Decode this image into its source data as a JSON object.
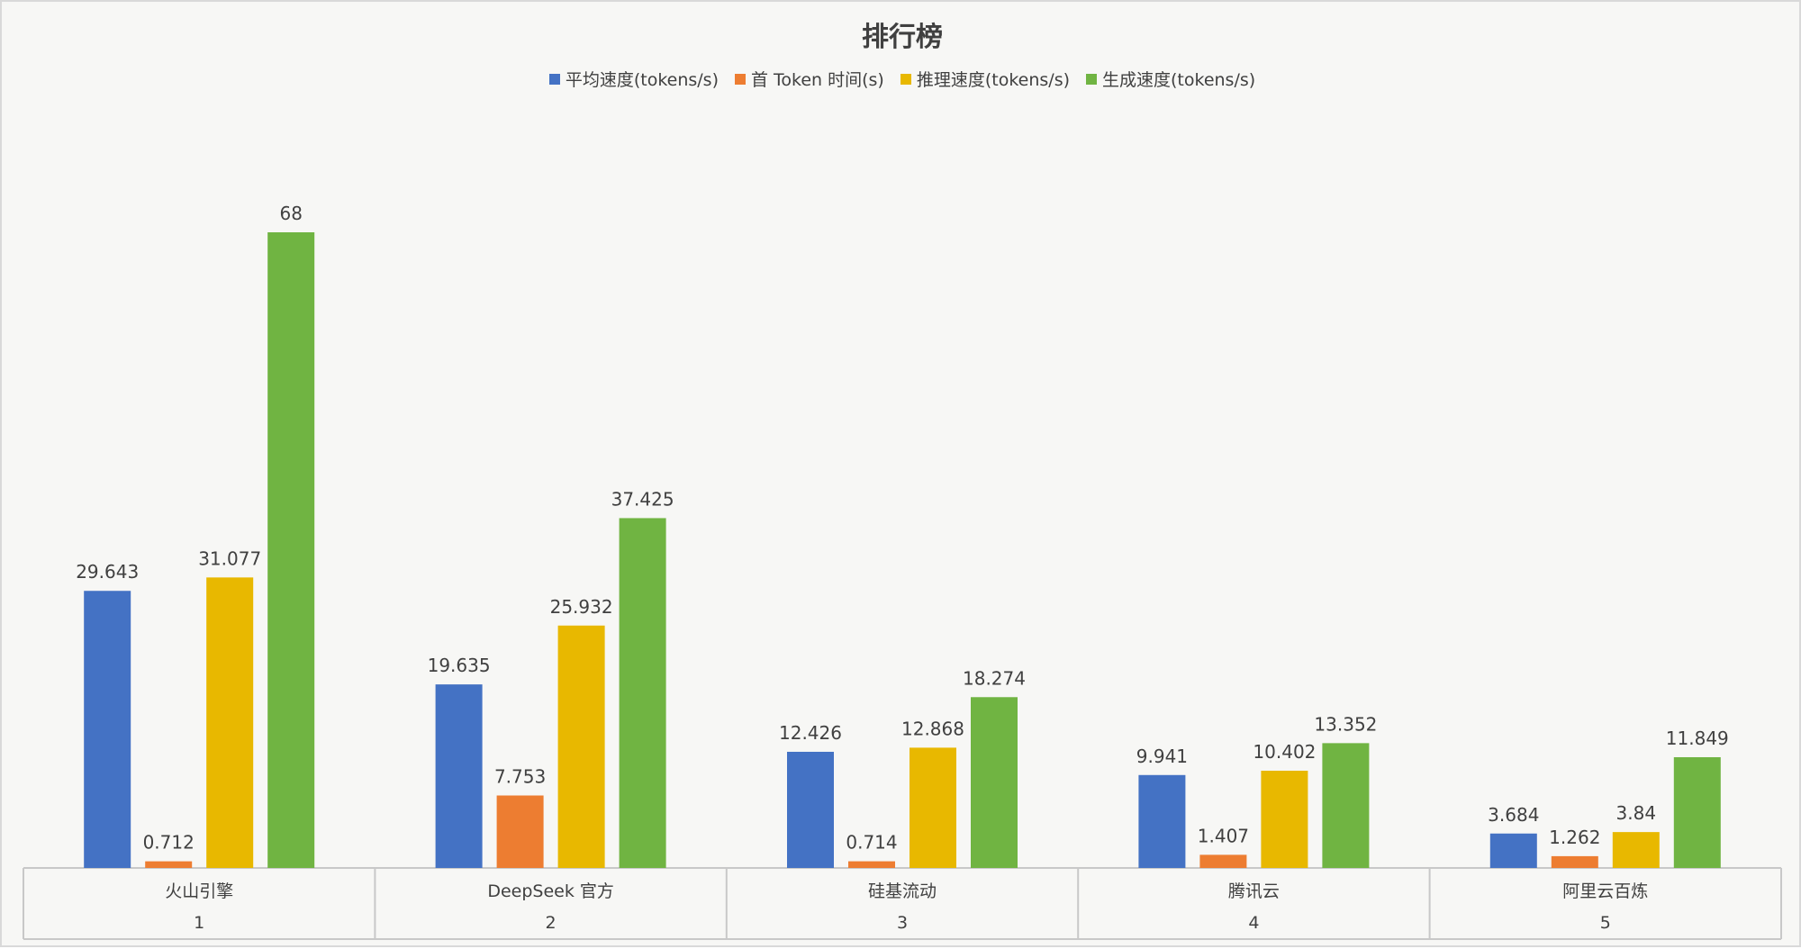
{
  "chart_data": {
    "type": "bar",
    "title": "排行榜",
    "categories": [
      "火山引擎",
      "DeepSeek 官方",
      "硅基流动",
      "腾讯云",
      "阿里云百炼"
    ],
    "ranks": [
      "1",
      "2",
      "3",
      "4",
      "5"
    ],
    "series": [
      {
        "name": "平均速度(tokens/s)",
        "color": "#4472c4",
        "values": [
          29.643,
          19.635,
          12.426,
          9.941,
          3.684
        ]
      },
      {
        "name": "首 Token 时间(s)",
        "color": "#ed7d31",
        "values": [
          0.712,
          7.753,
          0.714,
          1.407,
          1.262
        ]
      },
      {
        "name": "推理速度(tokens/s)",
        "color": "#e8b800",
        "values": [
          31.077,
          25.932,
          12.868,
          10.402,
          3.84
        ]
      },
      {
        "name": "生成速度(tokens/s)",
        "color": "#70b442",
        "values": [
          68,
          37.425,
          18.274,
          13.352,
          11.849
        ]
      }
    ],
    "labels": [
      [
        "29.643",
        "19.635",
        "12.426",
        "9.941",
        "3.684"
      ],
      [
        "0.712",
        "7.753",
        "0.714",
        "1.407",
        "1.262"
      ],
      [
        "31.077",
        "25.932",
        "12.868",
        "10.402",
        "3.84"
      ],
      [
        "68",
        "37.425",
        "18.274",
        "13.352",
        "11.849"
      ]
    ],
    "ylim": [
      0,
      68
    ],
    "grid": false,
    "legend": "top-center"
  }
}
